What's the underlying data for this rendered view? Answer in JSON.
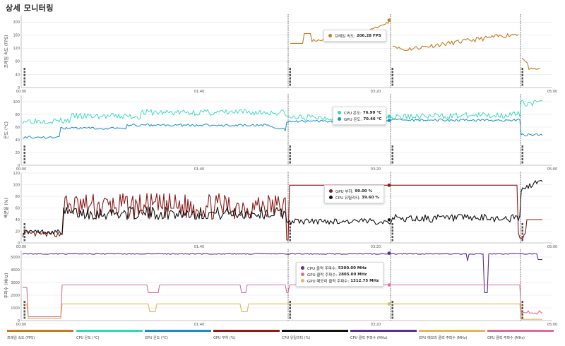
{
  "page": {
    "title": "상세 모니터링"
  },
  "x_ticks": [
    "00:00",
    "01:40",
    "03:20",
    "05:00"
  ],
  "colors": {
    "fps": "#c77a1a",
    "cpu_temp": "#2ed9b8",
    "gpu_temp": "#1a8cc8",
    "gpu_load": "#8b1a1a",
    "cpu_util": "#111111",
    "cpu_clock": "#5a2d9a",
    "gpu_mem_clock": "#e0b85a",
    "gpu_core_clock": "#d97090"
  },
  "panels": [
    {
      "ylabel": "프레임 속도 (FPS)",
      "yticks": [
        "200",
        "160",
        "120",
        "80",
        "40",
        "0"
      ]
    },
    {
      "ylabel": "온도 (°C)",
      "yticks": [
        "100",
        "80",
        "60",
        "40",
        "20",
        "0"
      ]
    },
    {
      "ylabel": "백분율 (%)",
      "yticks": [
        "120",
        "100",
        "80",
        "60",
        "40",
        "20",
        "0"
      ]
    },
    {
      "ylabel": "주파수 (MHz)",
      "yticks": [
        "5000",
        "4000",
        "3000",
        "2000",
        "1000",
        "0"
      ]
    }
  ],
  "tooltips": {
    "fps": {
      "label": "프레임 속도:",
      "value": "206.28 FPS"
    },
    "temp": [
      {
        "label": "CPU 온도:",
        "value": "76.99 °C"
      },
      {
        "label": "GPU 온도:",
        "value": "70.46 °C"
      }
    ],
    "pct": [
      {
        "label": "GPU 부하:",
        "value": "99.00 %"
      },
      {
        "label": "CPU 유틸리티:",
        "value": "39.60 %"
      }
    ],
    "freq": [
      {
        "label": "CPU 클럭 주파수:",
        "value": "5300.00 MHz"
      },
      {
        "label": "GPU 클럭 주파수:",
        "value": "2805.00 MHz"
      },
      {
        "label": "GPU 메모리 클럭 주파수:",
        "value": "1312.75 MHz"
      }
    ]
  },
  "legend": [
    {
      "label": "프레임 속도 (FPS)",
      "color": "#c77a1a"
    },
    {
      "label": "CPU 온도 (°C)",
      "color": "#2ed9b8"
    },
    {
      "label": "GPU 온도 (°C)",
      "color": "#1a8cc8"
    },
    {
      "label": "GPU 부하 (%)",
      "color": "#8b1a1a"
    },
    {
      "label": "CPU 유틸리티 (%)",
      "color": "#111111"
    },
    {
      "label": "CPU 클럭 주파수 (MHz)",
      "color": "#5a2d9a"
    },
    {
      "label": "GPU 메모리 클럭 주파수 (MHz)",
      "color": "#e0b85a"
    },
    {
      "label": "GPU 클럭 주파수 (MHz)",
      "color": "#d97090"
    }
  ]
}
